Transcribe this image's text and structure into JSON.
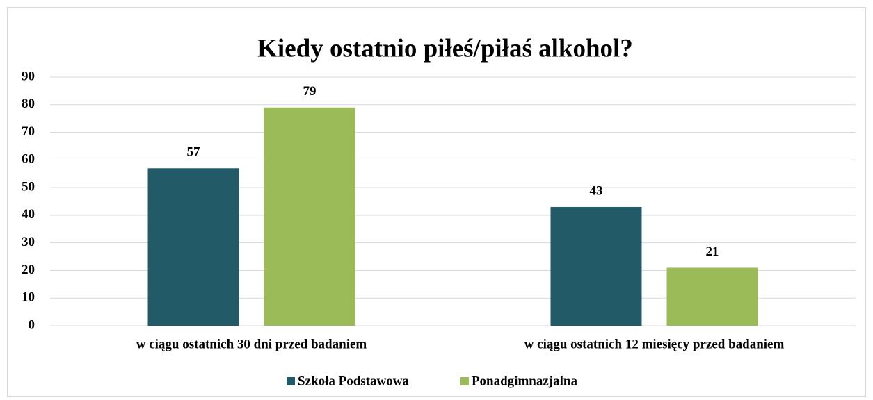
{
  "chart_data": {
    "type": "bar",
    "title": "Kiedy ostatnio piłeś/piłaś alkohol?",
    "categories": [
      "w ciągu ostatnich 30 dni przed badaniem",
      "w ciągu ostatnich 12 miesięcy przed badaniem"
    ],
    "series": [
      {
        "name": "Szkoła Podstawowa",
        "color": "#235a68",
        "values": [
          57,
          43
        ]
      },
      {
        "name": "Ponadgimnazjalna",
        "color": "#9bbb59",
        "values": [
          79,
          21
        ]
      }
    ],
    "ylim": [
      0,
      90
    ],
    "yticks": [
      0,
      10,
      20,
      30,
      40,
      50,
      60,
      70,
      80,
      90
    ],
    "grid": true,
    "legend": "bottom"
  }
}
